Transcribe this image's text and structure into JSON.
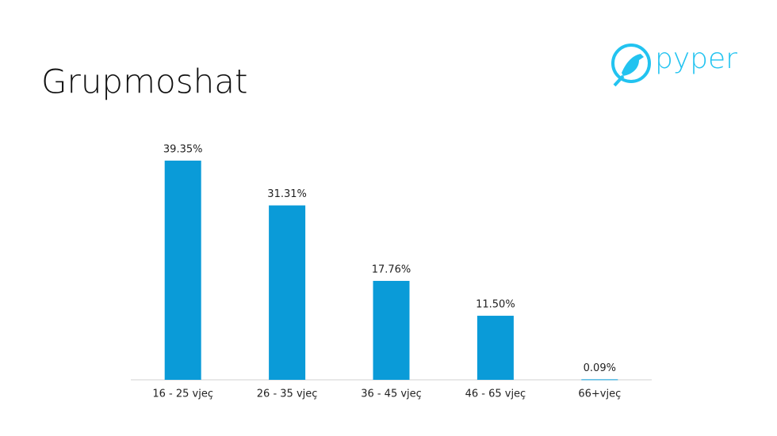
{
  "logo": "pyper",
  "chart_data": {
    "type": "bar",
    "title": "Grupmoshat",
    "categories": [
      "16 - 25 vjeç",
      "26 - 35 vjeç",
      "36 - 45 vjeç",
      "46 - 65 vjeç",
      "66+vjeç"
    ],
    "values": [
      39.35,
      31.31,
      17.76,
      11.5,
      0.09
    ],
    "value_labels": [
      "39.35%",
      "31.31%",
      "17.76%",
      "11.50%",
      "0.09%"
    ],
    "color": "#0a9bd8"
  }
}
